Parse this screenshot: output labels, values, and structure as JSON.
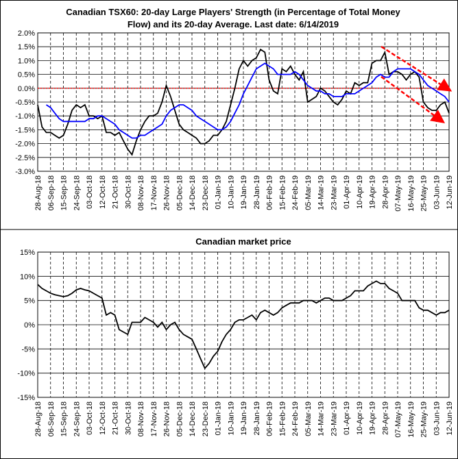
{
  "chart_data": [
    {
      "type": "line",
      "title_lines": [
        "Canadian TSX60: 20-day Large Players' Strength (in Percentage of Total Money",
        "Flow) and its 20-day Average. Last date: 6/14/2019"
      ],
      "categories": [
        "28-Aug-18",
        null,
        null,
        "06-Sep-18",
        null,
        null,
        "15-Sep-18",
        null,
        null,
        "24-Sep-18",
        null,
        null,
        "03-Oct-18",
        null,
        null,
        "12-Oct-18",
        null,
        null,
        "21-Oct-18",
        null,
        null,
        "30-Oct-18",
        null,
        null,
        "08-Nov-18",
        null,
        null,
        "17-Nov-18",
        null,
        null,
        "26-Nov-18",
        null,
        null,
        "05-Dec-18",
        null,
        null,
        "14-Dec-18",
        null,
        null,
        "23-Dec-18",
        null,
        null,
        "01-Jan-19",
        null,
        null,
        "10-Jan-19",
        null,
        null,
        "19-Jan-19",
        null,
        null,
        "28-Jan-19",
        null,
        null,
        "06-Feb-19",
        null,
        null,
        "15-Feb-19",
        null,
        null,
        "24-Feb-19",
        null,
        null,
        "05-Mar-19",
        null,
        null,
        "14-Mar-19",
        null,
        null,
        "23-Mar-19",
        null,
        null,
        "01-Apr-19",
        null,
        null,
        "10-Apr-19",
        null,
        null,
        "19-Apr-19",
        null,
        null,
        "28-Apr-19",
        null,
        null,
        "07-May-19",
        null,
        null,
        "16-May-19",
        null,
        null,
        "25-May-19",
        null,
        null,
        "03-Jun-19",
        null,
        null,
        "12-Jun-19"
      ],
      "series": [
        {
          "color": "#000000",
          "values": [
            -0.6,
            -1.4,
            -1.6,
            -1.6,
            -1.7,
            -1.8,
            -1.7,
            -1.3,
            -0.8,
            -0.6,
            -0.7,
            -0.6,
            -1.0,
            -1.0,
            -1.1,
            -1.0,
            -1.6,
            -1.6,
            -1.7,
            -1.6,
            -1.9,
            -2.2,
            -2.4,
            -1.9,
            -1.5,
            -1.2,
            -1.0,
            -1.0,
            -0.9,
            -0.5,
            0.1,
            -0.3,
            -0.8,
            -1.3,
            -1.5,
            -1.6,
            -1.7,
            -1.8,
            -2.0,
            -2.0,
            -1.9,
            -1.7,
            -1.7,
            -1.5,
            -1.2,
            -0.6,
            0.0,
            0.7,
            1.0,
            0.8,
            1.0,
            1.1,
            1.4,
            1.3,
            0.3,
            -0.1,
            -0.2,
            0.7,
            0.6,
            0.8,
            0.5,
            0.3,
            0.6,
            -0.5,
            -0.4,
            -0.3,
            0.0,
            -0.1,
            -0.3,
            -0.5,
            -0.6,
            -0.4,
            -0.1,
            -0.2,
            0.2,
            0.1,
            0.2,
            0.2,
            0.9,
            1.0,
            1.0,
            1.3,
            0.5,
            0.6,
            0.6,
            0.5,
            0.3,
            0.5,
            0.6,
            0.4,
            -0.5,
            -0.7,
            -0.8,
            -0.8,
            -0.6,
            -0.5,
            -0.9
          ]
        },
        {
          "color": "#0000ff",
          "values": [
            null,
            null,
            -0.6,
            -0.7,
            -0.9,
            -1.1,
            -1.2,
            -1.2,
            -1.2,
            -1.2,
            -1.2,
            -1.2,
            -1.1,
            -1.1,
            -1.0,
            -1.0,
            -1.1,
            -1.2,
            -1.3,
            -1.5,
            -1.6,
            -1.7,
            -1.8,
            -1.8,
            -1.7,
            -1.7,
            -1.6,
            -1.5,
            -1.4,
            -1.3,
            -1.0,
            -0.8,
            -0.7,
            -0.6,
            -0.6,
            -0.7,
            -0.8,
            -1.0,
            -1.1,
            -1.2,
            -1.3,
            -1.4,
            -1.5,
            -1.5,
            -1.4,
            -1.2,
            -0.9,
            -0.6,
            -0.2,
            0.1,
            0.4,
            0.7,
            0.8,
            0.9,
            0.8,
            0.7,
            0.5,
            0.5,
            0.5,
            0.5,
            0.6,
            0.5,
            0.3,
            0.1,
            0.0,
            -0.1,
            -0.1,
            -0.2,
            -0.2,
            -0.3,
            -0.3,
            -0.3,
            -0.2,
            -0.2,
            -0.2,
            -0.1,
            0.0,
            0.1,
            0.2,
            0.4,
            0.5,
            0.4,
            0.4,
            0.6,
            0.7,
            0.7,
            0.7,
            0.7,
            0.6,
            0.5,
            0.3,
            0.1,
            0.0,
            -0.1,
            -0.2,
            -0.3,
            -0.5
          ]
        }
      ],
      "ylim": [
        -3,
        2
      ],
      "yticks": [
        {
          "value": 2,
          "label": "2.0%"
        },
        {
          "value": 1.5,
          "label": "1.5%"
        },
        {
          "value": 1,
          "label": "1.0%"
        },
        {
          "value": 0.5,
          "label": "0.5%"
        },
        {
          "value": 0,
          "label": "0.0%"
        },
        {
          "value": -0.5,
          "label": "-0.5%"
        },
        {
          "value": -1,
          "label": "-1.0%"
        },
        {
          "value": -1.5,
          "label": "-1.5%"
        },
        {
          "value": -2,
          "label": "-2.0%"
        },
        {
          "value": -2.5,
          "label": "-2.5%"
        },
        {
          "value": -3,
          "label": "-3.0%"
        }
      ],
      "grid": true,
      "zero_line_color": "#ff0000"
    },
    {
      "type": "line",
      "title": "Canadian market price",
      "categories": [
        "28-Aug-18",
        null,
        null,
        "06-Sep-18",
        null,
        null,
        "15-Sep-18",
        null,
        null,
        "24-Sep-18",
        null,
        null,
        "03-Oct-18",
        null,
        null,
        "12-Oct-18",
        null,
        null,
        "21-Oct-18",
        null,
        null,
        "30-Oct-18",
        null,
        null,
        "08-Nov-18",
        null,
        null,
        "17-Nov-18",
        null,
        null,
        "26-Nov-18",
        null,
        null,
        "05-Dec-18",
        null,
        null,
        "14-Dec-18",
        null,
        null,
        "23-Dec-18",
        null,
        null,
        "01-Jan-19",
        null,
        null,
        "10-Jan-19",
        null,
        null,
        "19-Jan-19",
        null,
        null,
        "28-Jan-19",
        null,
        null,
        "06-Feb-19",
        null,
        null,
        "15-Feb-19",
        null,
        null,
        "24-Feb-19",
        null,
        null,
        "05-Mar-19",
        null,
        null,
        "14-Mar-19",
        null,
        null,
        "23-Mar-19",
        null,
        null,
        "01-Apr-19",
        null,
        null,
        "10-Apr-19",
        null,
        null,
        "19-Apr-19",
        null,
        null,
        "28-Apr-19",
        null,
        null,
        "07-May-19",
        null,
        null,
        "16-May-19",
        null,
        null,
        "25-May-19",
        null,
        null,
        "03-Jun-19",
        null,
        null,
        "12-Jun-19"
      ],
      "series": [
        {
          "color": "#000000",
          "values": [
            8.3,
            7.5,
            7.0,
            6.5,
            6.2,
            6.0,
            5.8,
            6.0,
            6.5,
            7.2,
            7.5,
            7.2,
            7.0,
            6.5,
            6.0,
            5.5,
            2.0,
            2.5,
            2.0,
            -1.0,
            -1.5,
            -2.0,
            0.5,
            0.5,
            0.5,
            1.5,
            1.0,
            0.5,
            -0.5,
            0.5,
            -1.0,
            0.0,
            0.5,
            -1.0,
            -2.0,
            -2.5,
            -3.0,
            -5.0,
            -7.0,
            -9.0,
            -8.0,
            -6.5,
            -5.5,
            -3.5,
            -2.0,
            -1.0,
            0.5,
            1.0,
            1.0,
            1.5,
            2.0,
            1.0,
            2.5,
            3.0,
            2.5,
            2.0,
            2.5,
            3.5,
            4.0,
            4.5,
            4.5,
            4.5,
            5.0,
            5.0,
            5.0,
            4.5,
            5.0,
            5.5,
            5.5,
            5.0,
            5.0,
            5.0,
            5.5,
            6.0,
            7.0,
            7.0,
            7.0,
            8.0,
            8.5,
            9.0,
            8.5,
            8.5,
            7.5,
            7.0,
            6.5,
            5.0,
            5.0,
            5.0,
            5.0,
            3.5,
            3.0,
            3.0,
            2.5,
            2.0,
            2.5,
            2.5,
            3.0
          ]
        }
      ],
      "ylim": [
        -15,
        15
      ],
      "yticks": [
        {
          "value": 15,
          "label": "15%"
        },
        {
          "value": 10,
          "label": "10%"
        },
        {
          "value": 5,
          "label": "5%"
        },
        {
          "value": 0,
          "label": "0%"
        },
        {
          "value": -5,
          "label": "-5%"
        },
        {
          "value": -10,
          "label": "-10%"
        },
        {
          "value": -15,
          "label": "-15%"
        }
      ],
      "grid": true
    }
  ]
}
